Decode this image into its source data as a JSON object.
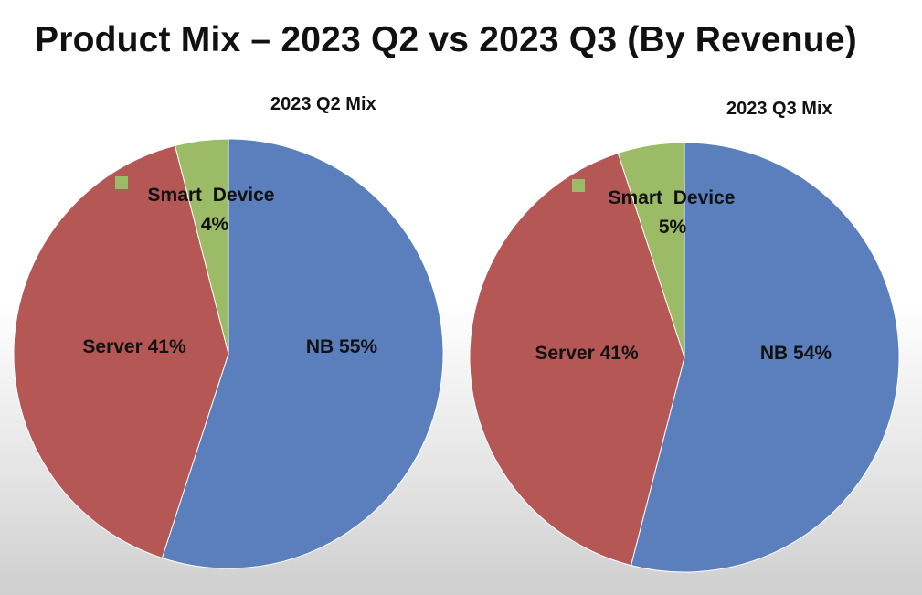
{
  "title": "Product Mix – 2023 Q2 vs 2023 Q3 (By Revenue)",
  "colors": {
    "NB": "#5b7fbd",
    "Server": "#b55755",
    "Smart Device": "#9bbb66"
  },
  "chart_data": [
    {
      "type": "pie",
      "title": "2023 Q2 Mix",
      "slices": [
        {
          "name": "NB",
          "value": 55,
          "label": "NB 55%"
        },
        {
          "name": "Server",
          "value": 41,
          "label": "Server 41%"
        },
        {
          "name": "Smart Device",
          "value": 4,
          "label_line1": "Smart  Device",
          "label_line2": "4%"
        }
      ]
    },
    {
      "type": "pie",
      "title": "2023 Q3 Mix",
      "slices": [
        {
          "name": "NB",
          "value": 54,
          "label": "NB 54%"
        },
        {
          "name": "Server",
          "value": 41,
          "label": "Server 41%"
        },
        {
          "name": "Smart Device",
          "value": 5,
          "label_line1": "Smart  Device",
          "label_line2": "5%"
        }
      ]
    }
  ]
}
